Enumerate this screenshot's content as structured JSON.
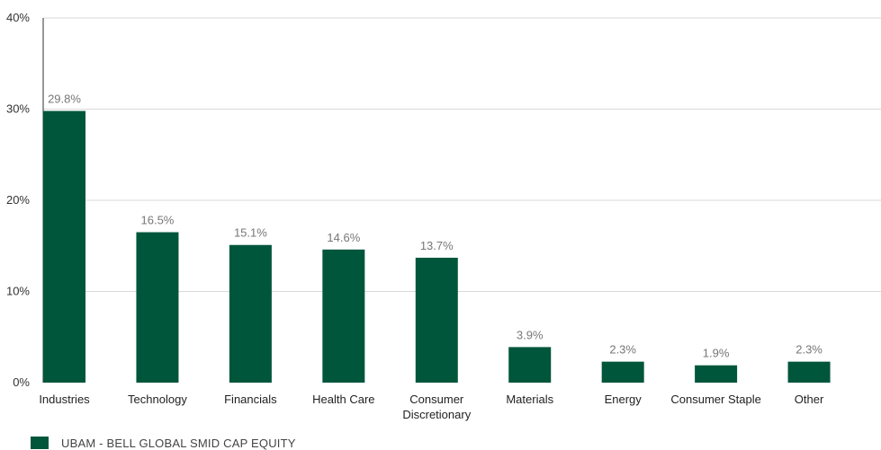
{
  "chart_data": {
    "type": "bar",
    "categories": [
      "Industries",
      "Technology",
      "Financials",
      "Health Care",
      "Consumer Discretionary",
      "Materials",
      "Energy",
      "Consumer Staple",
      "Other"
    ],
    "series": [
      {
        "name": "UBAM - BELL GLOBAL SMID CAP EQUITY",
        "values": [
          29.8,
          16.5,
          15.1,
          14.6,
          13.7,
          3.9,
          2.3,
          1.9,
          2.3
        ],
        "labels": [
          "29.8%",
          "16.5%",
          "15.1%",
          "14.6%",
          "13.7%",
          "3.9%",
          "2.3%",
          "1.9%",
          "2.3%"
        ]
      }
    ],
    "yticks": [
      "0%",
      "10%",
      "20%",
      "30%",
      "40%"
    ],
    "ylim": [
      0,
      40
    ],
    "grid": true,
    "legend_position": "bottom-left",
    "title": "",
    "xlabel": "",
    "ylabel": ""
  },
  "colors": {
    "bar": "#00563B",
    "grid": "#d9d9d9",
    "axis": "#333333"
  }
}
